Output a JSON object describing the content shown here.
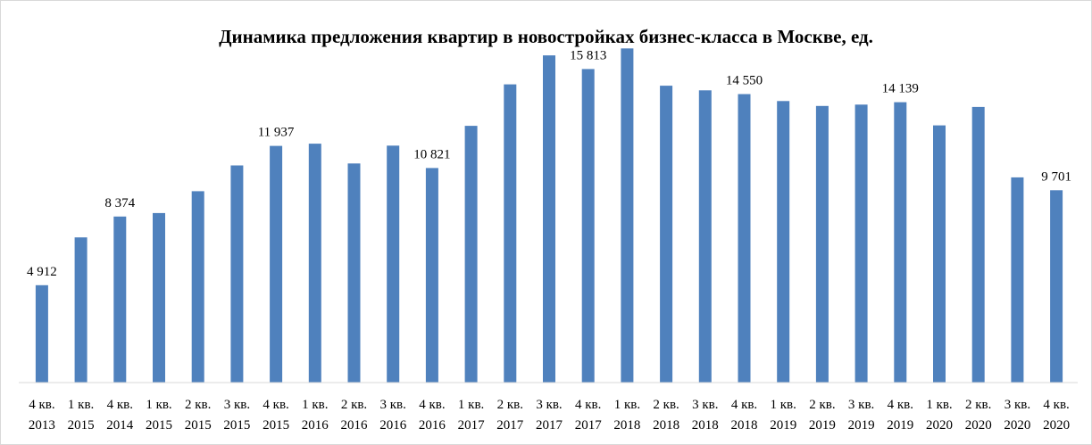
{
  "chart_data": {
    "type": "bar",
    "title": "Динамика предложения квартир в новостройках бизнес-класса в Москве, ед.",
    "xlabel": "",
    "ylabel": "",
    "ylim": [
      0,
      17000
    ],
    "grid": false,
    "legend": "none",
    "bar_color": "#4f81bd",
    "categories": [
      [
        "4 кв.",
        "2013"
      ],
      [
        "1 кв.",
        "2015"
      ],
      [
        "4 кв.",
        "2014"
      ],
      [
        "1 кв.",
        "2015"
      ],
      [
        "2 кв.",
        "2015"
      ],
      [
        "3 кв.",
        "2015"
      ],
      [
        "4 кв.",
        "2015"
      ],
      [
        "1 кв.",
        "2016"
      ],
      [
        "2 кв.",
        "2016"
      ],
      [
        "3 кв.",
        "2016"
      ],
      [
        "4 кв.",
        "2016"
      ],
      [
        "1 кв.",
        "2017"
      ],
      [
        "2 кв.",
        "2017"
      ],
      [
        "3 кв.",
        "2017"
      ],
      [
        "4 кв.",
        "2017"
      ],
      [
        "1 кв.",
        "2018"
      ],
      [
        "2 кв.",
        "2018"
      ],
      [
        "3 кв.",
        "2018"
      ],
      [
        "4 кв.",
        "2018"
      ],
      [
        "1 кв.",
        "2019"
      ],
      [
        "2 кв.",
        "2019"
      ],
      [
        "3 кв.",
        "2019"
      ],
      [
        "4 кв.",
        "2019"
      ],
      [
        "1 кв.",
        "2020"
      ],
      [
        "2 кв.",
        "2020"
      ],
      [
        "3 кв.",
        "2020"
      ],
      [
        "4 кв.",
        "2020"
      ]
    ],
    "values": [
      4912,
      7320,
      8374,
      8550,
      9650,
      10950,
      11937,
      12050,
      11050,
      11950,
      10821,
      12950,
      15040,
      16500,
      15813,
      16850,
      14970,
      14740,
      14550,
      14200,
      13950,
      14020,
      14139,
      12970,
      13900,
      10350,
      9701
    ],
    "data_labels": [
      {
        "index": 0,
        "text": "4 912"
      },
      {
        "index": 2,
        "text": "8 374"
      },
      {
        "index": 6,
        "text": "11 937"
      },
      {
        "index": 10,
        "text": "10 821"
      },
      {
        "index": 14,
        "text": "15 813"
      },
      {
        "index": 18,
        "text": "14 550"
      },
      {
        "index": 22,
        "text": "14 139"
      },
      {
        "index": 26,
        "text": "9 701"
      }
    ]
  }
}
